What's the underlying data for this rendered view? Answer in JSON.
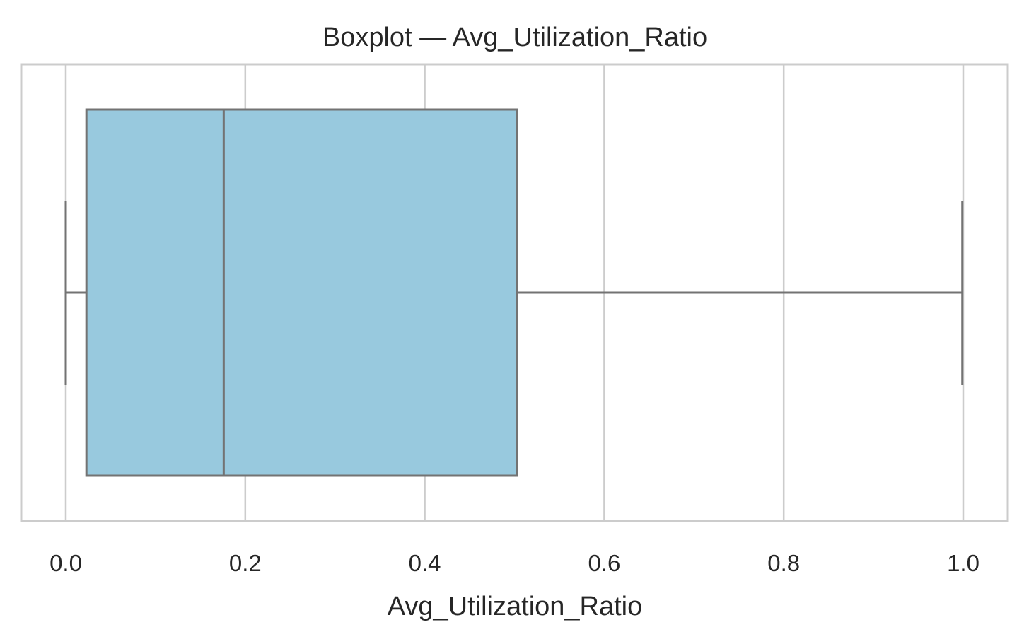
{
  "chart_data": {
    "type": "boxplot",
    "title": "Boxplot — Avg_Utilization_Ratio",
    "xlabel": "Avg_Utilization_Ratio",
    "ylabel": "",
    "orientation": "horizontal",
    "xlim": [
      -0.05,
      1.05
    ],
    "xticks": [
      0.0,
      0.2,
      0.4,
      0.6,
      0.8,
      1.0
    ],
    "xtick_labels": [
      "0.0",
      "0.2",
      "0.4",
      "0.6",
      "0.8",
      "1.0"
    ],
    "grid": true,
    "box": {
      "whisker_low": 0.0,
      "q1": 0.023,
      "median": 0.176,
      "q3": 0.503,
      "whisker_high": 0.999
    },
    "colors": {
      "box_fill": "#98c9de",
      "line": "#737373",
      "grid": "#cccccc",
      "frame": "#cccccc",
      "text": "#262626"
    }
  }
}
